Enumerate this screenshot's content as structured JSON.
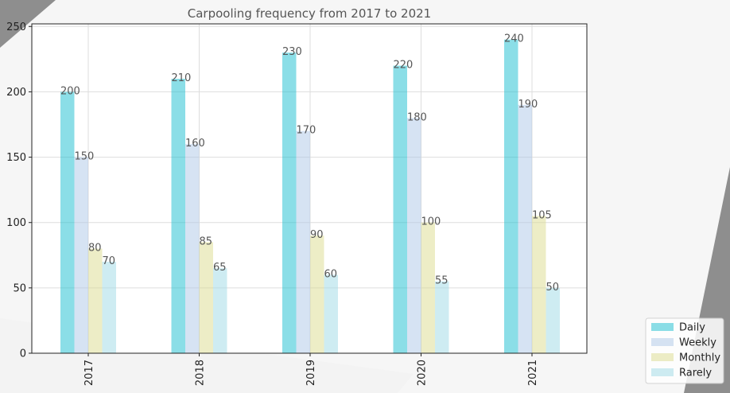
{
  "chart_data": {
    "type": "bar",
    "title": "Carpooling frequency from 2017 to 2021",
    "categories": [
      "2017",
      "2018",
      "2019",
      "2020",
      "2021"
    ],
    "series": [
      {
        "name": "Daily",
        "values": [
          200,
          210,
          230,
          220,
          240
        ],
        "color": "#17becf",
        "opacity": 0.5
      },
      {
        "name": "Weekly",
        "values": [
          150,
          160,
          170,
          180,
          190
        ],
        "color": "#aec7e8",
        "opacity": 0.5
      },
      {
        "name": "Monthly",
        "values": [
          80,
          85,
          90,
          100,
          105
        ],
        "color": "#dbdb8d",
        "opacity": 0.5
      },
      {
        "name": "Rarely",
        "values": [
          70,
          65,
          60,
          55,
          50
        ],
        "color": "#9edae5",
        "opacity": 0.5
      }
    ],
    "ylim": [
      0,
      252
    ],
    "yticks": [
      0,
      50,
      100,
      150,
      200,
      250
    ],
    "xlabel": "",
    "ylabel": "",
    "grid": true,
    "legend_position": "bottom-right",
    "x_tick_rotation": 90
  }
}
